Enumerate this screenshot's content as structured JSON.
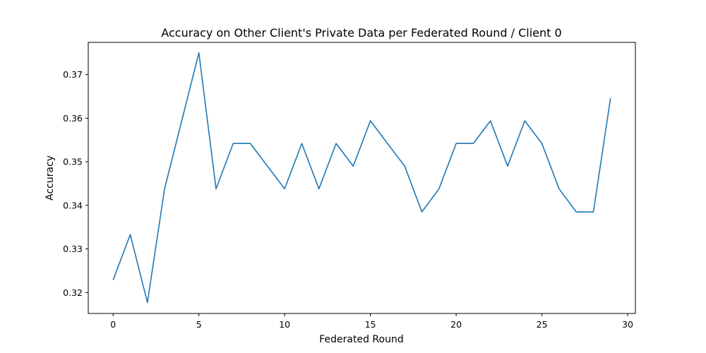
{
  "chart_data": {
    "type": "line",
    "title": "Accuracy on Other Client's Private Data per Federated Round / Client 0",
    "xlabel": "Federated Round",
    "ylabel": "Accuracy",
    "xlim": [
      -1.45,
      30.45
    ],
    "ylim": [
      0.3152,
      0.3774
    ],
    "xticks": [
      0,
      5,
      10,
      15,
      20,
      25,
      30
    ],
    "xtick_labels": [
      "0",
      "5",
      "10",
      "15",
      "20",
      "25",
      "30"
    ],
    "yticks": [
      0.32,
      0.33,
      0.34,
      0.35,
      0.36,
      0.37
    ],
    "ytick_labels": [
      "0.32",
      "0.33",
      "0.34",
      "0.35",
      "0.36",
      "0.37"
    ],
    "grid": false,
    "line_color": "#1f77b4",
    "series": [
      {
        "x": [
          0,
          1,
          2,
          3,
          4,
          5,
          6,
          7,
          8,
          9,
          10,
          11,
          12,
          13,
          14,
          15,
          16,
          17,
          18,
          19,
          20,
          21,
          22,
          23,
          24,
          25,
          26,
          27,
          28,
          29
        ],
        "values": [
          0.3229,
          0.3333,
          0.3177,
          0.3438,
          0.3594,
          0.375,
          0.3438,
          0.3542,
          0.3542,
          0.349,
          0.3438,
          0.3542,
          0.3438,
          0.3542,
          0.349,
          0.3594,
          0.3542,
          0.349,
          0.3385,
          0.3438,
          0.3542,
          0.3542,
          0.3594,
          0.349,
          0.3594,
          0.3542,
          0.3438,
          0.3385,
          0.3385,
          0.3646
        ]
      }
    ]
  }
}
